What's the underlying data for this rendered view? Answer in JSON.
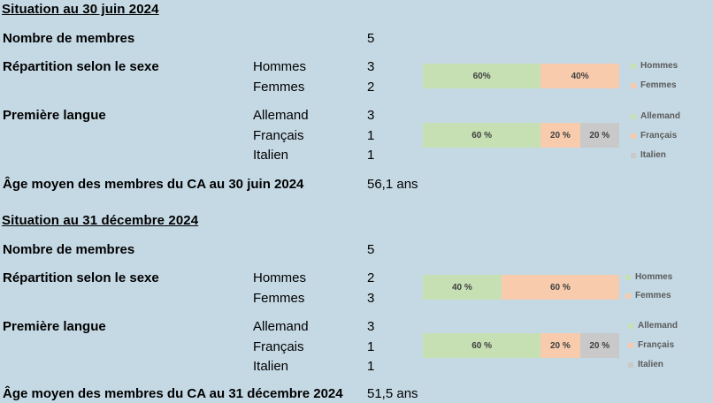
{
  "colors": {
    "background": "#c5d9e4",
    "series1": "#c6e0b4",
    "series2": "#f8cbad",
    "series3": "#c9c9c9"
  },
  "s1": {
    "title": "Situation au 30 juin 2024",
    "members_label": "Nombre de membres",
    "members_value": "5",
    "sex_label": "Répartition selon le sexe",
    "men_label": "Hommes",
    "men_value": "3",
    "women_label": "Femmes",
    "women_value": "2",
    "lang_label": "Première langue",
    "de_label": "Allemand",
    "de_value": "3",
    "fr_label": "Français",
    "fr_value": "1",
    "it_label": "Italien",
    "it_value": "1",
    "age_label": "Âge moyen des membres du CA au 30 juin 2024",
    "age_value": "56,1 ans"
  },
  "s2": {
    "title": "Situation au 31 décembre 2024",
    "members_label": "Nombre de membres",
    "members_value": "5",
    "sex_label": "Répartition selon le sexe",
    "men_label": "Hommes",
    "men_value": "2",
    "women_label": "Femmes",
    "women_value": "3",
    "lang_label": "Première langue",
    "de_label": "Allemand",
    "de_value": "3",
    "fr_label": "Français",
    "fr_value": "1",
    "it_label": "Italien",
    "it_value": "1",
    "age_label": "Âge moyen des membres du CA au 31 décembre 2024",
    "age_value": "51,5 ans"
  },
  "chart_data": [
    {
      "type": "bar",
      "stacked": true,
      "orientation": "horizontal",
      "series": [
        {
          "name": "Hommes",
          "value": 60,
          "label": "60%",
          "color": "#c6e0b4"
        },
        {
          "name": "Femmes",
          "value": 40,
          "label": "40%",
          "color": "#f8cbad"
        }
      ]
    },
    {
      "type": "bar",
      "stacked": true,
      "orientation": "horizontal",
      "series": [
        {
          "name": "Allemand",
          "value": 60,
          "label": "60 %",
          "color": "#c6e0b4"
        },
        {
          "name": "Français",
          "value": 20,
          "label": "20 %",
          "color": "#f8cbad"
        },
        {
          "name": "Italien",
          "value": 20,
          "label": "20 %",
          "color": "#c9c9c9"
        }
      ]
    },
    {
      "type": "bar",
      "stacked": true,
      "orientation": "horizontal",
      "series": [
        {
          "name": "Hommes",
          "value": 40,
          "label": "40 %",
          "color": "#c6e0b4"
        },
        {
          "name": "Femmes",
          "value": 60,
          "label": "60 %",
          "color": "#f8cbad"
        }
      ]
    },
    {
      "type": "bar",
      "stacked": true,
      "orientation": "horizontal",
      "series": [
        {
          "name": "Allemand",
          "value": 60,
          "label": "60 %",
          "color": "#c6e0b4"
        },
        {
          "name": "Français",
          "value": 20,
          "label": "20 %",
          "color": "#f8cbad"
        },
        {
          "name": "Italien",
          "value": 20,
          "label": "20 %",
          "color": "#c9c9c9"
        }
      ]
    }
  ]
}
